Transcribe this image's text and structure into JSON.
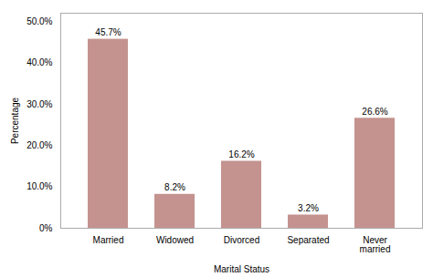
{
  "chart_data": {
    "type": "bar",
    "categories": [
      "Married",
      "Widowed",
      "Divorced",
      "Separated",
      "Never\nmarried"
    ],
    "values": [
      45.7,
      8.2,
      16.2,
      3.2,
      26.6
    ],
    "value_labels": [
      "45.7%",
      "8.2%",
      "16.2%",
      "3.2%",
      "26.6%"
    ],
    "data_labels": true,
    "color": "#c4938f",
    "xlabel": "Marital Status",
    "ylabel": "Percentage",
    "ylim": [
      0,
      52
    ],
    "yticks": [
      {
        "value": 0,
        "label": "0%"
      },
      {
        "value": 10,
        "label": "10.0%"
      },
      {
        "value": 20,
        "label": "20.0%"
      },
      {
        "value": 30,
        "label": "30.0%"
      },
      {
        "value": 40,
        "label": "40.0%"
      },
      {
        "value": 50,
        "label": "50.0%"
      }
    ],
    "grid": false
  }
}
